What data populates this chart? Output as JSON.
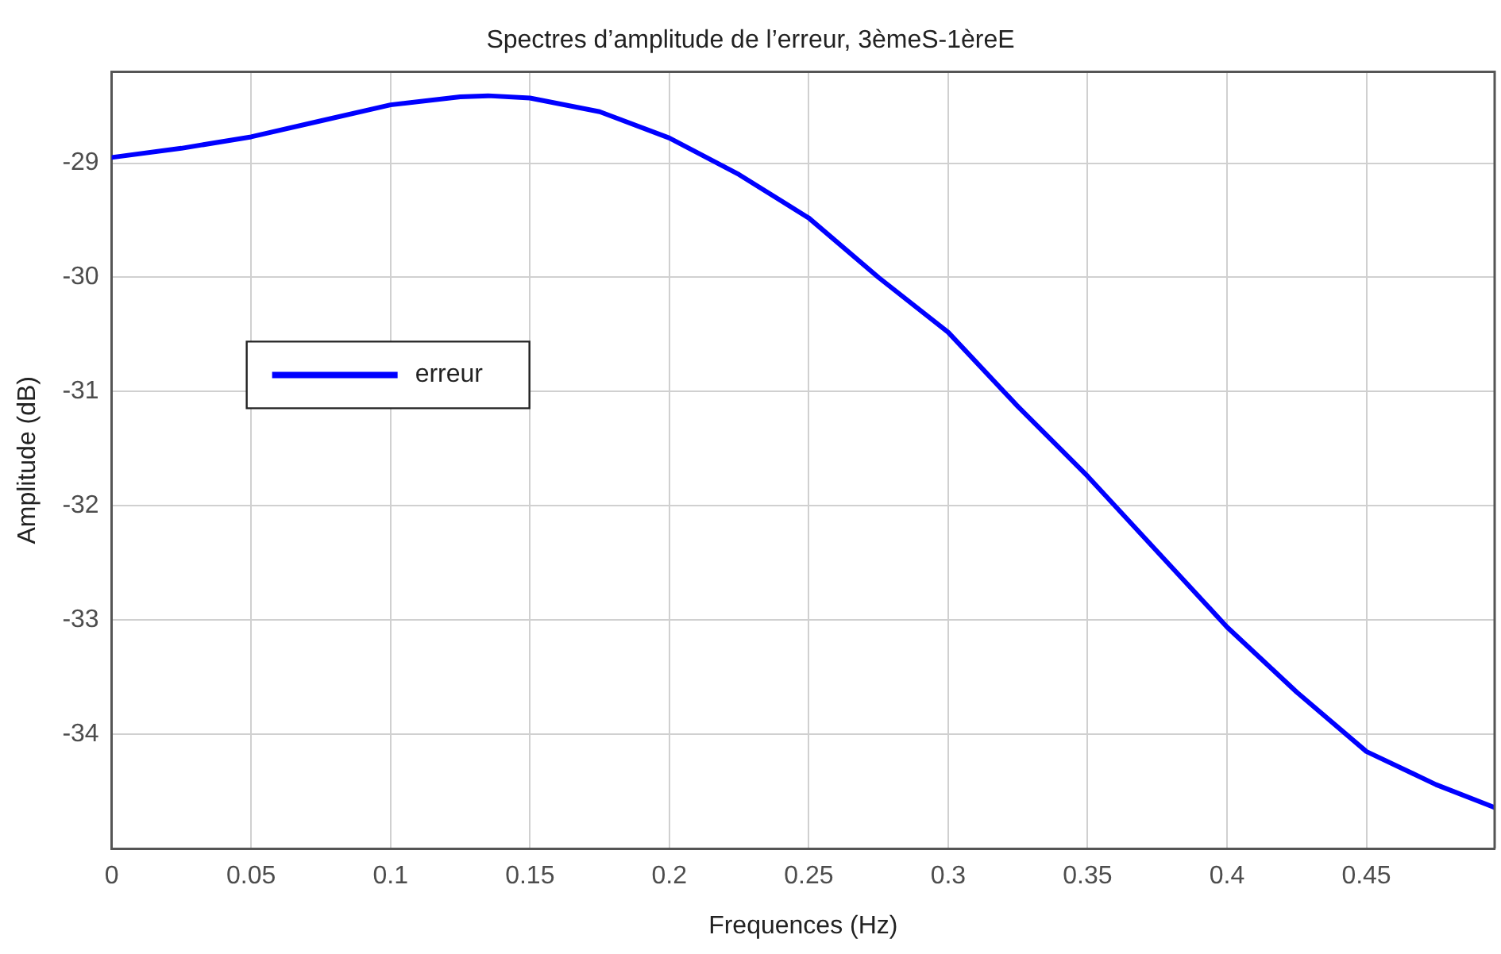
{
  "chart_data": {
    "type": "line",
    "title": "Spectres d’amplitude de l’erreur, 3èmeS-1èreE",
    "xlabel": "Frequences (Hz)",
    "ylabel": "Amplitude (dB)",
    "x": [
      0,
      0.025,
      0.05,
      0.075,
      0.1,
      0.125,
      0.135,
      0.15,
      0.175,
      0.2,
      0.225,
      0.25,
      0.275,
      0.3,
      0.325,
      0.35,
      0.375,
      0.4,
      0.425,
      0.45,
      0.475,
      0.496
    ],
    "series": [
      {
        "name": "erreur",
        "color": "#0000ff",
        "values": [
          -28.95,
          -28.87,
          -28.77,
          -28.63,
          -28.49,
          -28.42,
          -28.41,
          -28.43,
          -28.55,
          -28.78,
          -29.1,
          -29.48,
          -30.0,
          -30.48,
          -31.13,
          -31.74,
          -32.4,
          -33.06,
          -33.63,
          -34.15,
          -34.44,
          -34.64
        ]
      }
    ],
    "xlim": [
      0,
      0.496
    ],
    "ylim": [
      -35,
      -28.2
    ],
    "xticks": [
      0,
      0.05,
      0.1,
      0.15,
      0.2,
      0.25,
      0.3,
      0.35,
      0.4,
      0.45
    ],
    "yticks": [
      -34,
      -33,
      -32,
      -31,
      -30,
      -29
    ],
    "grid": true,
    "legend": "left",
    "marker": "none",
    "line_style": "solid"
  }
}
